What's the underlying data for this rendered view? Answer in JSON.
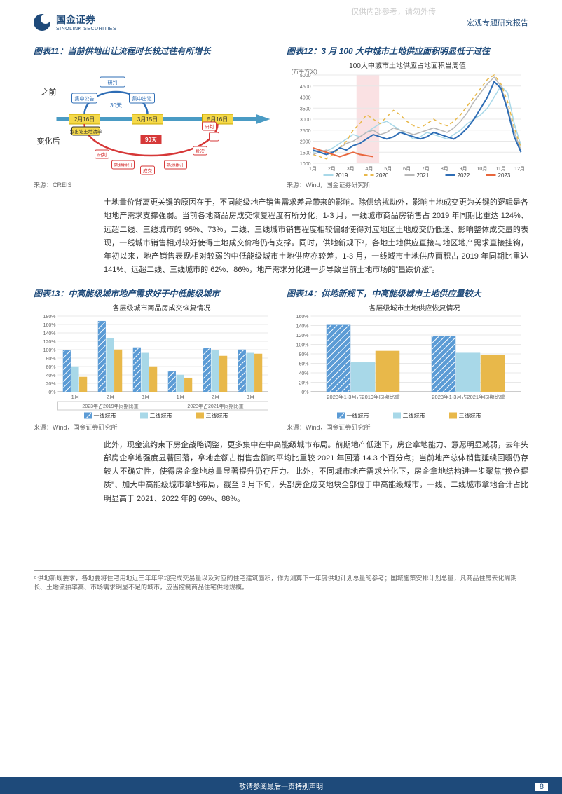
{
  "watermark": "仅供内部参考，请勿外传",
  "header": {
    "logo_cn": "国金证券",
    "logo_en": "SINOLINK SECURITIES",
    "report_type": "宏观专题研究报告"
  },
  "chart11": {
    "title": "图表11：当前供地出让流程时长较过往有所增长",
    "before_label": "之前",
    "after_label": "变化后",
    "dates": [
      "2月16日",
      "3月15日",
      "5月16日"
    ],
    "top_nodes": [
      "研判",
      "集中公告",
      "集中出让"
    ],
    "top_days": "30天",
    "bottom_days": "90天",
    "bottom_nodes": [
      "拟出让土地清单",
      "研判",
      "熟地推出",
      "成交",
      "熟地推出",
      "批次",
      "一",
      "研判"
    ],
    "source": "来源：CREIS",
    "colors": {
      "blue": "#2e6db5",
      "red": "#d63838",
      "yellow": "#f5d949",
      "arrow": "#4a9bc4"
    }
  },
  "chart12": {
    "title": "图表12：3 月 100 大中城市土地供应面积明显低于过往",
    "subtitle": "100大中城市土地供应占地面积当周值",
    "ylabel": "(万平方米)",
    "ylim": [
      1000,
      5000
    ],
    "ytick_step": 500,
    "xticks": [
      "1月",
      "2月",
      "3月",
      "4月",
      "5月",
      "6月",
      "7月",
      "8月",
      "9月",
      "10月",
      "11月",
      "12月"
    ],
    "highlight_band": {
      "start": 2.5,
      "end": 3.8,
      "color": "#f5c4c8",
      "opacity": 0.5
    },
    "series": [
      {
        "name": "2019",
        "color": "#a8d8e8",
        "dash": "none",
        "width": 1.5,
        "values": [
          1500,
          1600,
          1550,
          1700,
          1900,
          2100,
          2300,
          2200,
          2400,
          2600,
          2800,
          2900,
          2700,
          2500,
          2300,
          2100,
          2200,
          2400,
          2300,
          2200,
          2100,
          2300,
          2500,
          2800,
          3000,
          3200,
          3500,
          4000,
          4500,
          4200,
          2800,
          1800
        ]
      },
      {
        "name": "2020",
        "color": "#e8b84a",
        "dash": "5,4",
        "width": 1.5,
        "values": [
          1400,
          1300,
          1200,
          1400,
          1700,
          2000,
          2500,
          2800,
          3200,
          3000,
          2800,
          3100,
          3400,
          3200,
          2900,
          2700,
          2600,
          2800,
          3000,
          2800,
          2700,
          2900,
          3200,
          3600,
          4000,
          4400,
          4800,
          5000,
          4600,
          3800,
          2600,
          1700
        ]
      },
      {
        "name": "2021",
        "color": "#b8b8b8",
        "dash": "none",
        "width": 1.5,
        "values": [
          1400,
          1500,
          1600,
          1500,
          1700,
          1900,
          2000,
          2200,
          2400,
          2500,
          2300,
          2400,
          2600,
          2500,
          2400,
          2300,
          2400,
          2500,
          2600,
          2500,
          2400,
          2600,
          2900,
          3300,
          3800,
          4200,
          4600,
          4900,
          4500,
          3500,
          2400,
          1600
        ]
      },
      {
        "name": "2022",
        "color": "#2e6db5",
        "dash": "none",
        "width": 2,
        "values": [
          1600,
          1500,
          1400,
          1500,
          1700,
          1600,
          1800,
          1900,
          2100,
          2300,
          2200,
          2100,
          2200,
          2400,
          2300,
          2200,
          2100,
          2200,
          2400,
          2300,
          2200,
          2100,
          2300,
          2600,
          3000,
          3500,
          4000,
          4700,
          4400,
          3400,
          2200,
          1500
        ]
      },
      {
        "name": "2023",
        "color": "#e8663c",
        "dash": "none",
        "width": 2,
        "values": [
          1700,
          1600,
          1500,
          1400,
          1300,
          1400,
          1500,
          1400,
          1350,
          1300
        ]
      }
    ],
    "source": "来源：Wind，国金证券研究所",
    "bg": "#ffffff",
    "grid": "#e8e8e8"
  },
  "paragraph1": "土地量价背离更关键的原因在于，不同能级地产销售需求差异带来的影响。除供给扰动外，影响土地成交更为关键的逻辑是各地地产需求支撑强弱。当前各地商品房成交恢复程度有所分化，1-3 月，一线城市商品房销售占 2019 年同期比重达 124%、远超二线、三线城市的 95%、73%，二线、三线城市销售程度相较偏弱使得对应地区土地成交仍低迷、影响整体成交量的表现，一线城市销售相对较好使得土地成交价格仍有支撑。同时，供地新规下²，各地土地供应直接与地区地产需求直接挂钩，年初以来，地产销售表现相对较弱的中低能级城市土地供应亦较差，1-3 月，一线城市土地供应面积占 2019 年同期比重达 141%、远超二线、三线城市的 62%、86%，地产需求分化进一步导致当前土地市场的\"量跌价涨\"。",
  "chart13": {
    "title": "图表13：中高能级城市地产需求好于中低能级城市",
    "subtitle": "各层级城市商品房成交恢复情况",
    "ylim": [
      0,
      180
    ],
    "ytick_step": 20,
    "y_suffix": "%",
    "groups": [
      "1月",
      "2月",
      "3月",
      "1月",
      "2月",
      "3月"
    ],
    "group_sections": [
      "2023年占2019年同期比重",
      "2023年占2021年同期比重"
    ],
    "section_split": 3,
    "series": [
      {
        "name": "一线城市",
        "color": "#5b9bd5",
        "pattern": "diag",
        "values": [
          98,
          168,
          105,
          48,
          103,
          100
        ]
      },
      {
        "name": "二线城市",
        "color": "#a8d8e8",
        "pattern": "none",
        "values": [
          60,
          127,
          92,
          40,
          98,
          92
        ]
      },
      {
        "name": "三线城市",
        "color": "#e8b84a",
        "pattern": "none",
        "values": [
          35,
          100,
          60,
          33,
          85,
          90
        ]
      }
    ],
    "source": "来源：Wind，国金证券研究所"
  },
  "chart14": {
    "title": "图表14：供地新规下，中高能级城市土地供应量较大",
    "subtitle": "各层级城市土地供应恢复情况",
    "ylim": [
      0,
      160
    ],
    "ytick_step": 20,
    "y_suffix": "%",
    "groups": [
      "2023年1-3月占2019年同期比重",
      "2023年1-3月占2021年同期比重"
    ],
    "series": [
      {
        "name": "一线城市",
        "color": "#5b9bd5",
        "pattern": "diag",
        "values": [
          141,
          117
        ]
      },
      {
        "name": "二线城市",
        "color": "#a8d8e8",
        "pattern": "none",
        "values": [
          62,
          82
        ]
      },
      {
        "name": "三线城市",
        "color": "#e8b84a",
        "pattern": "none",
        "values": [
          86,
          78
        ]
      }
    ],
    "source": "来源：Wind，国金证券研究所"
  },
  "paragraph2": "此外，现金流约束下房企战略调整，更多集中在中高能级城市布局。前期地产低迷下，房企拿地能力、意愿明显减弱，去年头部房企拿地强度显著回落，拿地金额占销售金额的平均比重较 2021 年回落 14.3 个百分点；当前地产总体销售延续回暖仍存较大不确定性，使得房企拿地总量显著提升仍存压力。此外，不同城市地产需求分化下，房企拿地结构进一步聚焦\"换仓提质\"、加大中高能级城市拿地布局，截至 3 月下旬，头部房企成交地块全部位于中高能级城市，一线、二线城市拿地合计占比明显高于 2021、2022 年的 69%、88%。",
  "footnote": "² 供地新规要求，各地要将住宅用地近三年年平均完成交易量以及对应的住宅建筑面积，作为测算下一年度供地计划总量的参考；国城施策安排计划总量，凡商品住房去化周期长、土地流拍率高、市场需求明显不足的城市，应当控制商品住宅供地规模。",
  "footer": "敬请参阅最后一页特别声明",
  "page_number": "8"
}
